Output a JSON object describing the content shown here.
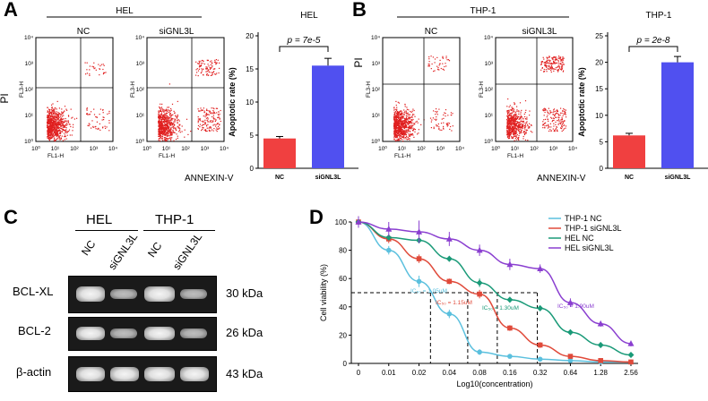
{
  "panels": {
    "A": {
      "letter": "A",
      "cell_line": "HEL",
      "flow_groups": [
        "NC",
        "siGNL3L"
      ],
      "axis_y": "PI",
      "axis_x": "ANNEXIN-V",
      "fl1": "FL1-H",
      "fl3": "FL3-H",
      "ticks": [
        "10⁰",
        "10¹",
        "10²",
        "10³",
        "10⁴"
      ]
    },
    "B": {
      "letter": "B",
      "cell_line": "THP-1",
      "flow_groups": [
        "NC",
        "siGNL3L"
      ],
      "axis_y": "PI",
      "axis_x": "ANNEXIN-V",
      "fl1": "FL1-H",
      "fl3": "FL3-H",
      "ticks": [
        "10⁰",
        "10¹",
        "10²",
        "10³",
        "10⁴"
      ]
    },
    "C": {
      "letter": "C",
      "groups": [
        "HEL",
        "THP-1"
      ],
      "lanes": [
        "NC",
        "siGNL3L",
        "NC",
        "siGNL3L"
      ],
      "rows": [
        {
          "label": "BCL-XL",
          "size": "30 kDa"
        },
        {
          "label": "BCL-2",
          "size": "26 kDa"
        },
        {
          "label": "β-actin",
          "size": "43 kDa"
        }
      ]
    },
    "D": {
      "letter": "D",
      "ic50_labels": [
        "IC₅₀ = 1.05uM",
        "IC₅₀ = 1.15uM",
        "IC₅₀ = 1.30uM",
        "IC₅₀ = 1.90uM"
      ]
    }
  },
  "colors": {
    "nc_bar": "#f04040",
    "si_bar": "#5050f0",
    "dots": "#e02020",
    "thp1_nc": "#5bc0de",
    "thp1_si": "#e04a3a",
    "hel_nc": "#1a9a78",
    "hel_si": "#8a3fd0"
  },
  "chart_data": [
    {
      "type": "bar",
      "title": "HEL",
      "categories": [
        "NC",
        "siGNL3L"
      ],
      "values": [
        4.5,
        15.5
      ],
      "errors": [
        0.3,
        1.1
      ],
      "ylabel": "Apoptotic rate (%)",
      "ylim": [
        0,
        20
      ],
      "yticks": [
        0,
        5,
        10,
        15,
        20
      ],
      "annotation": "p = 7e-5"
    },
    {
      "type": "bar",
      "title": "THP-1",
      "categories": [
        "NC",
        "siGNL3L"
      ],
      "values": [
        6.2,
        20.0
      ],
      "errors": [
        0.4,
        1.1
      ],
      "ylabel": "Apoptotic rate (%)",
      "ylim": [
        0,
        25
      ],
      "yticks": [
        0,
        5,
        10,
        15,
        20,
        25
      ],
      "annotation": "p = 2e-8"
    },
    {
      "type": "line",
      "title": "",
      "xlabel": "Log10(concentration)",
      "ylabel": "Cell viability (%)",
      "x": [
        "0",
        "0.01",
        "0.02",
        "0.04",
        "0.08",
        "0.16",
        "0.32",
        "0.64",
        "1.28",
        "2.56"
      ],
      "ylim": [
        0,
        100
      ],
      "yticks": [
        0,
        20,
        40,
        60,
        80,
        100
      ],
      "ic50_line": 50,
      "ic50_x": [
        0.026,
        0.061,
        0.12,
        0.3
      ],
      "series": [
        {
          "name": "THP-1 NC",
          "values": [
            100,
            80,
            58,
            35,
            8,
            5,
            3,
            2,
            1,
            1
          ],
          "err": [
            4,
            3,
            4,
            3,
            2,
            1,
            1,
            1,
            1,
            1
          ]
        },
        {
          "name": "THP-1 siGNL3L",
          "values": [
            100,
            88,
            74,
            58,
            49,
            25,
            13,
            5,
            2,
            1
          ],
          "err": [
            4,
            3,
            3,
            2,
            3,
            2,
            2,
            1,
            1,
            1
          ]
        },
        {
          "name": "HEL NC",
          "values": [
            100,
            89,
            87,
            74,
            57,
            45,
            39,
            22,
            13,
            6
          ],
          "err": [
            3,
            2,
            2,
            2,
            3,
            2,
            2,
            2,
            2,
            2
          ]
        },
        {
          "name": "HEL siGNL3L",
          "values": [
            100,
            95,
            93,
            88,
            80,
            70,
            67,
            43,
            28,
            14
          ],
          "err": [
            4,
            5,
            8,
            5,
            4,
            4,
            3,
            3,
            2,
            2
          ]
        }
      ]
    }
  ]
}
